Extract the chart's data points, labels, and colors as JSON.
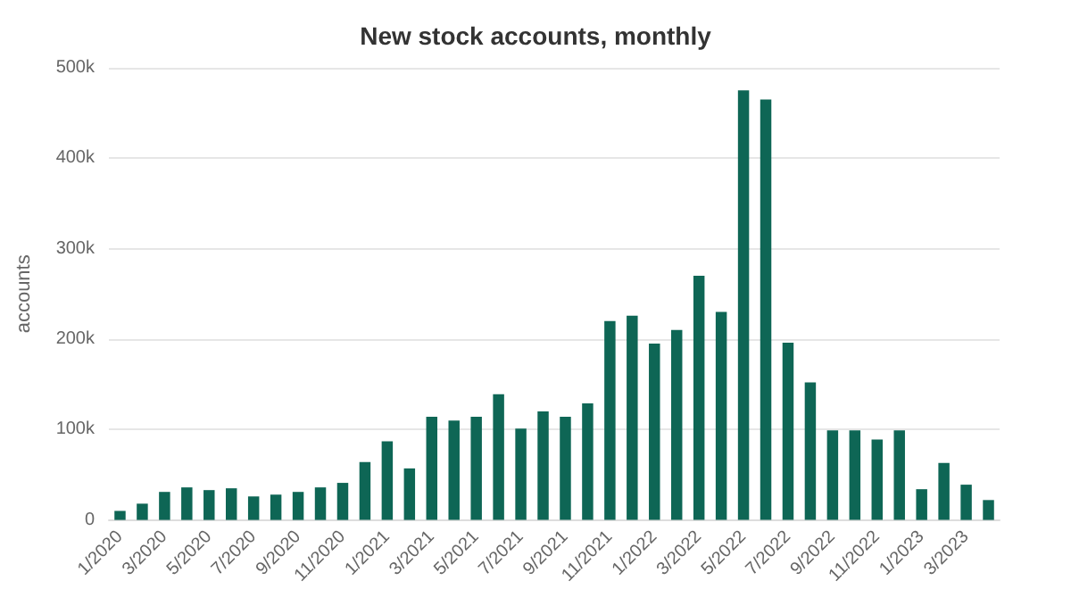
{
  "chart_data": {
    "type": "bar",
    "title": "New stock accounts, monthly",
    "ylabel": "accounts",
    "categories": [
      "1/2020",
      null,
      "3/2020",
      null,
      "5/2020",
      null,
      "7/2020",
      null,
      "9/2020",
      null,
      "11/2020",
      null,
      "1/2021",
      null,
      "3/2021",
      null,
      "5/2021",
      null,
      "7/2021",
      null,
      "9/2021",
      null,
      "11/2021",
      null,
      "1/2022",
      null,
      "3/2022",
      null,
      "5/2022",
      null,
      "7/2022",
      null,
      "9/2022",
      null,
      "11/2022",
      null,
      "1/2023",
      null,
      "3/2023",
      null
    ],
    "values": [
      10000,
      18000,
      31000,
      36000,
      33000,
      35000,
      26000,
      28000,
      31000,
      36000,
      41000,
      64000,
      87000,
      57000,
      114000,
      110000,
      114000,
      139000,
      101000,
      120000,
      114000,
      129000,
      220000,
      226000,
      195000,
      210000,
      270000,
      230000,
      475000,
      465000,
      196000,
      152000,
      99000,
      99000,
      89000,
      99000,
      34000,
      63000,
      39000,
      22000
    ],
    "color": "#0e6655",
    "ylim": [
      0,
      500000
    ],
    "yticks": [
      {
        "value": 0,
        "label": "0"
      },
      {
        "value": 100000,
        "label": "100k"
      },
      {
        "value": 200000,
        "label": "200k"
      },
      {
        "value": 300000,
        "label": "300k"
      },
      {
        "value": 400000,
        "label": "400k"
      },
      {
        "value": 500000,
        "label": "500k"
      }
    ],
    "grid": "y"
  }
}
